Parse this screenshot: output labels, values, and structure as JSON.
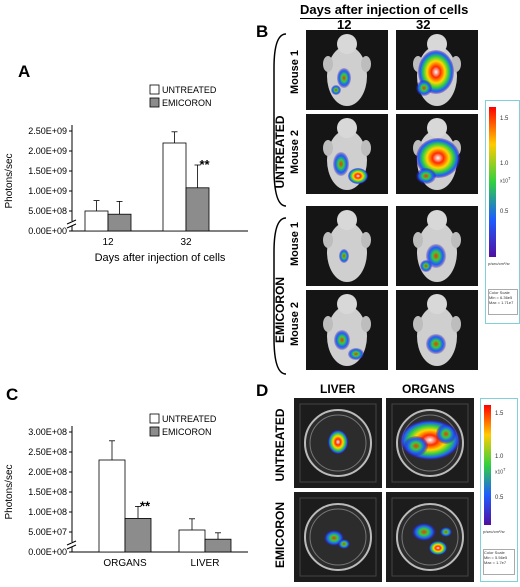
{
  "chart_data": [
    {
      "type": "bar",
      "panel": "A",
      "categories": [
        "12",
        "32"
      ],
      "series": [
        {
          "name": "UNTREATED",
          "values": [
            500000000.0,
            2200000000.0
          ],
          "errors": [
            260000000.0,
            280000000.0
          ]
        },
        {
          "name": "EMICORON",
          "values": [
            420000000.0,
            1080000000.0
          ],
          "errors": [
            320000000.0,
            570000000.0
          ]
        }
      ],
      "yticks": [
        "0.00E+00",
        "5.00E+08",
        "1.00E+09",
        "1.50E+09",
        "2.00E+09",
        "2.50E+09"
      ],
      "ylim": [
        0,
        2500000000.0
      ],
      "xlabel": "Days after injection of cells",
      "ylabel": "Photons/sec",
      "annotation": "**",
      "legend": "top-right"
    },
    {
      "type": "bar",
      "panel": "C",
      "categories": [
        "ORGANS",
        "LIVER"
      ],
      "series": [
        {
          "name": "UNTREATED",
          "values": [
            230000000.0,
            55000000.0
          ],
          "errors": [
            48000000.0,
            28000000.0
          ]
        },
        {
          "name": "EMICORON",
          "values": [
            84000000.0,
            32000000.0
          ],
          "errors": [
            30000000.0,
            16000000.0
          ]
        }
      ],
      "yticks": [
        "0.00E+00",
        "5.00E+07",
        "1.00E+08",
        "1.50E+08",
        "2.00E+08",
        "2.50E+08",
        "3.00E+08"
      ],
      "ylim": [
        0,
        300000000.0
      ],
      "xlabel": "",
      "ylabel": "Photons/sec",
      "annotation": "**",
      "legend": "top-right"
    }
  ],
  "panels": {
    "a": "A",
    "b": "B",
    "c": "C",
    "d": "D"
  },
  "panel_b": {
    "header": "Days after injection of cells",
    "days": [
      "12",
      "32"
    ],
    "group_untreated": "UNTREATED",
    "group_emicoron": "EMICORON",
    "mouse1": "Mouse 1",
    "mouse2": "Mouse 2",
    "scale_ticks": [
      "1.5",
      "1.0",
      "0.5"
    ],
    "scale_exp": "x10",
    "scale_exp_power": "7",
    "scale_unit": "p/sec/cm²/sr",
    "scale_min_max": [
      "Color Scale",
      "Min = 6.36e5",
      "Max = 1.71e7"
    ]
  },
  "panel_d": {
    "cols": [
      "LIVER",
      "ORGANS"
    ],
    "rows": [
      "UNTREATED",
      "EMICORON"
    ],
    "scale_ticks": [
      "1.5",
      "1.0",
      "0.5"
    ],
    "scale_exp": "x10",
    "scale_exp_power": "7",
    "scale_unit": "p/sec/cm²/sr",
    "scale_min_max": [
      "Color Scale",
      "Min = 5.56e5",
      "Max = 1.7e7"
    ]
  },
  "colors": {
    "untreated": "#ffffff",
    "emicoron": "#8c8c8c",
    "image_bg": "#151515"
  }
}
